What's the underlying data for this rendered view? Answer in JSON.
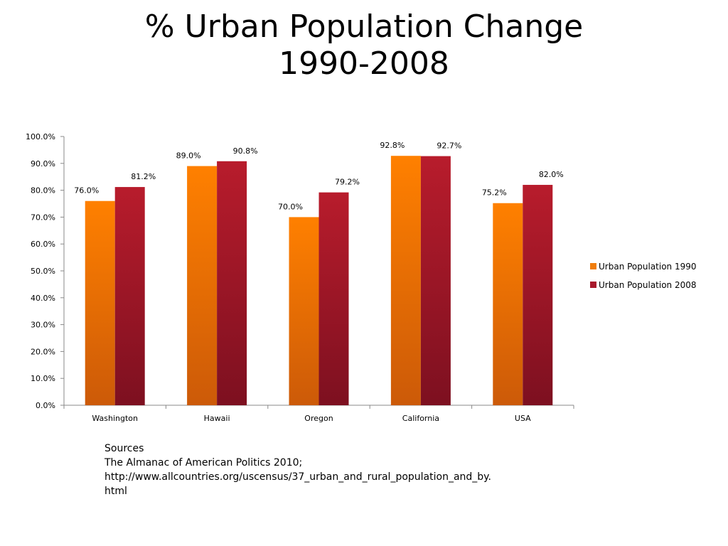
{
  "slide": {
    "title_line1": "% Urban Population Change",
    "title_line2": "1990-2008"
  },
  "chart_data": {
    "type": "bar",
    "categories": [
      "Washington",
      "Hawaii",
      "Oregon",
      "California",
      "USA"
    ],
    "series": [
      {
        "name": "Urban Population 1990",
        "values": [
          76.0,
          89.0,
          70.0,
          92.8,
          75.2
        ],
        "labels": [
          "76.0%",
          "89.0%",
          "70.0%",
          "92.8%",
          "75.2%"
        ],
        "color": "#f07d0c"
      },
      {
        "name": "Urban Population 2008",
        "values": [
          81.2,
          90.8,
          79.2,
          92.7,
          82.0
        ],
        "labels": [
          "81.2%",
          "90.8%",
          "79.2%",
          "92.7%",
          "82.0%"
        ],
        "color": "#a8192c"
      }
    ],
    "ylim": [
      0,
      100
    ],
    "yticks": [
      "0.0%",
      "10.0%",
      "20.0%",
      "30.0%",
      "40.0%",
      "50.0%",
      "60.0%",
      "70.0%",
      "80.0%",
      "90.0%",
      "100.0%"
    ],
    "grid": false,
    "legend": "right"
  },
  "sources": {
    "heading": "Sources",
    "line1": "The Almanac of American Politics 2010;",
    "line2": "http://www.allcountries.org/uscensus/37_urban_and_rural_population_and_by.",
    "line3": "html"
  }
}
